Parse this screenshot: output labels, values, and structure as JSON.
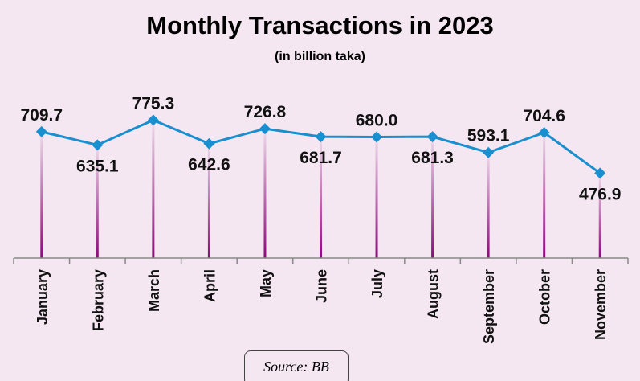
{
  "chart_data": {
    "type": "line",
    "title": "Monthly Transactions in 2023",
    "subtitle": "(in billion taka)",
    "categories": [
      "January",
      "February",
      "March",
      "April",
      "May",
      "June",
      "July",
      "August",
      "September",
      "October",
      "November"
    ],
    "values": [
      709.7,
      635.1,
      775.3,
      642.6,
      726.8,
      681.7,
      680.0,
      681.3,
      593.1,
      704.6,
      476.9
    ],
    "value_labels": [
      "709.7",
      "635.1",
      "775.3",
      "642.6",
      "726.8",
      "681.7",
      "680.0",
      "681.3",
      "593.1",
      "704.6",
      "476.9"
    ],
    "label_position": [
      "above",
      "below",
      "above",
      "below",
      "above",
      "below",
      "above",
      "below",
      "above",
      "above",
      "below"
    ],
    "ylim": [
      0,
      1450
    ],
    "grid": false,
    "line_color": "#1a8fd0",
    "stem_color": "#8b0a7a",
    "source": "Source: BB"
  }
}
